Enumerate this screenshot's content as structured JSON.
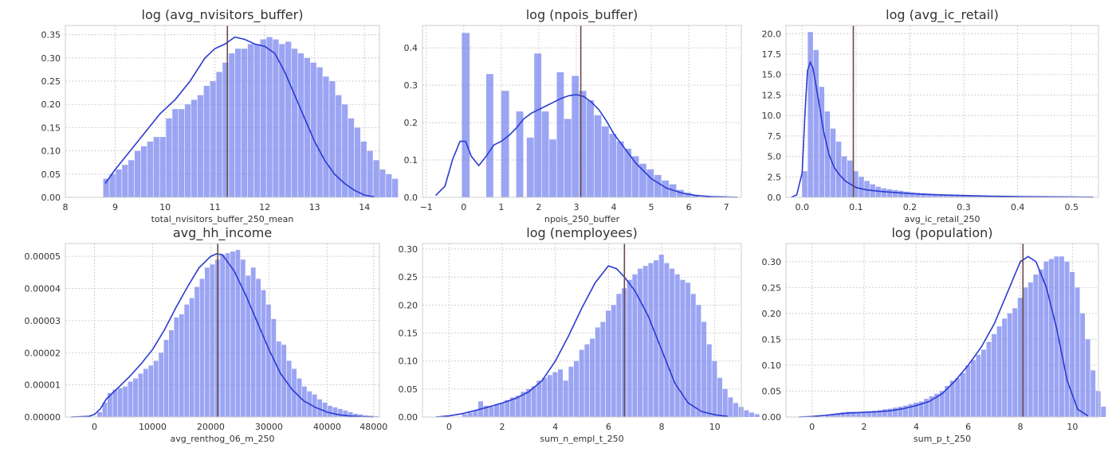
{
  "chart_data": [
    {
      "type": "histogram",
      "title": "log (avg_nvisitors_buffer)",
      "xlabel": "total_nvisitors_buffer_250_mean",
      "xlim": [
        8.0,
        14.3
      ],
      "ylim": [
        0,
        0.37
      ],
      "xticks": [
        8,
        9,
        10,
        11,
        12,
        13,
        14
      ],
      "xtick_labels": [
        "8",
        "9",
        "10",
        "11",
        "12",
        "13",
        "14"
      ],
      "yticks": [
        0,
        0.05,
        0.1,
        0.15,
        0.2,
        0.25,
        0.3,
        0.35
      ],
      "ytick_labels": [
        "0.00",
        "0.05",
        "0.10",
        "0.15",
        "0.20",
        "0.25",
        "0.30",
        "0.35"
      ],
      "mean_line": 11.25,
      "bins": {
        "start": 8.76,
        "width": 0.126,
        "heights": [
          0.04,
          0.05,
          0.06,
          0.07,
          0.08,
          0.1,
          0.11,
          0.12,
          0.13,
          0.13,
          0.17,
          0.19,
          0.19,
          0.2,
          0.21,
          0.22,
          0.24,
          0.25,
          0.27,
          0.29,
          0.31,
          0.32,
          0.32,
          0.33,
          0.33,
          0.34,
          0.345,
          0.34,
          0.33,
          0.335,
          0.32,
          0.31,
          0.3,
          0.29,
          0.28,
          0.26,
          0.25,
          0.22,
          0.2,
          0.17,
          0.15,
          0.12,
          0.1,
          0.08,
          0.06,
          0.05,
          0.04
        ]
      },
      "kde": {
        "x": [
          8.8,
          9.0,
          9.3,
          9.6,
          9.9,
          10.2,
          10.5,
          10.8,
          11.0,
          11.2,
          11.4,
          11.6,
          11.8,
          12.0,
          12.2,
          12.4,
          12.6,
          12.8,
          13.0,
          13.2,
          13.4,
          13.6,
          13.8,
          14.0,
          14.2
        ],
        "y": [
          0.03,
          0.06,
          0.1,
          0.14,
          0.18,
          0.21,
          0.25,
          0.3,
          0.32,
          0.33,
          0.345,
          0.34,
          0.33,
          0.325,
          0.31,
          0.27,
          0.22,
          0.17,
          0.12,
          0.08,
          0.05,
          0.03,
          0.015,
          0.005,
          0.001
        ]
      }
    },
    {
      "type": "histogram",
      "title": "log (npois_buffer)",
      "xlabel": "npois_250_buffer",
      "xlim": [
        -1.1,
        7.4
      ],
      "ylim": [
        0,
        0.46
      ],
      "xticks": [
        -1,
        0,
        1,
        2,
        3,
        4,
        5,
        6,
        7
      ],
      "xtick_labels": [
        "−1",
        "0",
        "1",
        "2",
        "3",
        "4",
        "5",
        "6",
        "7"
      ],
      "yticks": [
        0,
        0.1,
        0.2,
        0.3,
        0.4
      ],
      "ytick_labels": [
        "0.0",
        "0.1",
        "0.2",
        "0.3",
        "0.4"
      ],
      "mean_line": 3.12,
      "bars": [
        {
          "x0": -0.05,
          "x1": 0.17,
          "h": 0.44
        },
        {
          "x0": 0.6,
          "x1": 0.8,
          "h": 0.33
        },
        {
          "x0": 1.0,
          "x1": 1.22,
          "h": 0.285
        },
        {
          "x0": 1.4,
          "x1": 1.6,
          "h": 0.23
        },
        {
          "x0": 1.68,
          "x1": 1.88,
          "h": 0.16
        },
        {
          "x0": 1.88,
          "x1": 2.08,
          "h": 0.385
        },
        {
          "x0": 2.08,
          "x1": 2.28,
          "h": 0.23
        },
        {
          "x0": 2.28,
          "x1": 2.48,
          "h": 0.155
        },
        {
          "x0": 2.48,
          "x1": 2.68,
          "h": 0.335
        },
        {
          "x0": 2.68,
          "x1": 2.88,
          "h": 0.21
        },
        {
          "x0": 2.88,
          "x1": 3.08,
          "h": 0.325
        },
        {
          "x0": 3.08,
          "x1": 3.28,
          "h": 0.285
        },
        {
          "x0": 3.28,
          "x1": 3.48,
          "h": 0.26
        },
        {
          "x0": 3.48,
          "x1": 3.68,
          "h": 0.22
        },
        {
          "x0": 3.68,
          "x1": 3.88,
          "h": 0.19
        },
        {
          "x0": 3.88,
          "x1": 4.08,
          "h": 0.17
        },
        {
          "x0": 4.08,
          "x1": 4.28,
          "h": 0.15
        },
        {
          "x0": 4.28,
          "x1": 4.48,
          "h": 0.13
        },
        {
          "x0": 4.48,
          "x1": 4.68,
          "h": 0.11
        },
        {
          "x0": 4.68,
          "x1": 4.88,
          "h": 0.09
        },
        {
          "x0": 4.88,
          "x1": 5.08,
          "h": 0.075
        },
        {
          "x0": 5.08,
          "x1": 5.28,
          "h": 0.06
        },
        {
          "x0": 5.28,
          "x1": 5.48,
          "h": 0.045
        },
        {
          "x0": 5.48,
          "x1": 5.68,
          "h": 0.035
        },
        {
          "x0": 5.68,
          "x1": 5.88,
          "h": 0.02
        },
        {
          "x0": 5.88,
          "x1": 6.08,
          "h": 0.012
        },
        {
          "x0": 6.08,
          "x1": 6.28,
          "h": 0.007
        }
      ],
      "kde": {
        "x": [
          -0.75,
          -0.5,
          -0.3,
          -0.1,
          0.05,
          0.2,
          0.4,
          0.6,
          0.8,
          1.0,
          1.2,
          1.4,
          1.6,
          1.8,
          2.0,
          2.2,
          2.4,
          2.6,
          2.8,
          3.0,
          3.2,
          3.4,
          3.6,
          3.8,
          4.0,
          4.3,
          4.6,
          5.0,
          5.4,
          5.8,
          6.2,
          6.6,
          7.0,
          7.3
        ],
        "y": [
          0.005,
          0.03,
          0.1,
          0.15,
          0.15,
          0.11,
          0.085,
          0.11,
          0.14,
          0.15,
          0.165,
          0.185,
          0.21,
          0.225,
          0.235,
          0.245,
          0.255,
          0.265,
          0.272,
          0.275,
          0.27,
          0.255,
          0.235,
          0.205,
          0.17,
          0.13,
          0.09,
          0.05,
          0.025,
          0.012,
          0.005,
          0.002,
          0.001,
          0.0
        ]
      }
    },
    {
      "type": "histogram",
      "title": "log (avg_ic_retail)",
      "xlabel": "avg_ic_retail_250",
      "xlim": [
        -0.03,
        0.55
      ],
      "ylim": [
        0,
        21
      ],
      "xticks": [
        0.0,
        0.1,
        0.2,
        0.3,
        0.4,
        0.5
      ],
      "xtick_labels": [
        "0.0",
        "0.1",
        "0.2",
        "0.3",
        "0.4",
        "0.5"
      ],
      "yticks": [
        0,
        2.5,
        5,
        7.5,
        10,
        12.5,
        15,
        17.5,
        20
      ],
      "ytick_labels": [
        "0.0",
        "2.5",
        "5.0",
        "7.5",
        "10.0",
        "12.5",
        "15.0",
        "17.5",
        "20.0"
      ],
      "mean_line": 0.095,
      "bins": {
        "start": 0.0,
        "width": 0.0105,
        "heights": [
          3.2,
          20.2,
          18.0,
          13.5,
          10.5,
          8.4,
          6.8,
          5.0,
          4.5,
          3.2,
          2.5,
          2.0,
          1.6,
          1.3,
          1.1,
          1.0,
          0.9,
          0.8,
          0.7,
          0.6,
          0.55,
          0.5,
          0.45,
          0.4,
          0.35,
          0.32,
          0.3,
          0.28,
          0.25,
          0.22,
          0.2,
          0.18,
          0.16,
          0.14,
          0.12,
          0.1,
          0.09,
          0.08,
          0.07,
          0.06,
          0.05,
          0.045,
          0.04,
          0.035,
          0.03,
          0.025,
          0.02,
          0.02
        ]
      },
      "kde": {
        "x": [
          -0.02,
          -0.01,
          0.0,
          0.005,
          0.01,
          0.015,
          0.02,
          0.03,
          0.04,
          0.05,
          0.06,
          0.07,
          0.08,
          0.1,
          0.12,
          0.15,
          0.18,
          0.22,
          0.26,
          0.3,
          0.35,
          0.4,
          0.45,
          0.5,
          0.54
        ],
        "y": [
          0.02,
          0.3,
          3.0,
          10.0,
          15.5,
          16.5,
          15.8,
          12.0,
          8.0,
          5.2,
          3.6,
          2.7,
          2.0,
          1.2,
          0.9,
          0.7,
          0.55,
          0.4,
          0.3,
          0.22,
          0.15,
          0.1,
          0.07,
          0.04,
          0.02
        ]
      }
    },
    {
      "type": "histogram",
      "title": "avg_hh_income",
      "xlabel": "avg_renthog_06_m_250",
      "xlim": [
        -5000,
        49000
      ],
      "ylim": [
        0,
        5.4e-05
      ],
      "xticks": [
        0,
        10000,
        20000,
        30000,
        40000,
        48000
      ],
      "xtick_labels": [
        "0",
        "10000",
        "20000",
        "30000",
        "40000",
        "48000"
      ],
      "yticks": [
        0,
        1e-05,
        2e-05,
        3e-05,
        4e-05,
        5e-05
      ],
      "ytick_labels": [
        "0.00000",
        "0.00001",
        "0.00002",
        "0.00003",
        "0.00004",
        "0.00005"
      ],
      "mean_line": 21200,
      "bins": {
        "start": 500,
        "width": 880,
        "heights": [
          1.5e-06,
          4.5e-06,
          7.5e-06,
          8.5e-06,
          9e-06,
          9.5e-06,
          1.1e-05,
          1.2e-05,
          1.35e-05,
          1.5e-05,
          1.6e-05,
          1.75e-05,
          2e-05,
          2.4e-05,
          2.7e-05,
          3.1e-05,
          3.2e-05,
          3.5e-05,
          3.7e-05,
          4.05e-05,
          4.3e-05,
          4.65e-05,
          4.75e-05,
          4.9e-05,
          5.05e-05,
          5.1e-05,
          5.15e-05,
          5.2e-05,
          4.9e-05,
          4.4e-05,
          4.65e-05,
          4.3e-05,
          3.95e-05,
          3.5e-05,
          3.05e-05,
          2.35e-05,
          2.25e-05,
          1.75e-05,
          1.5e-05,
          1.2e-05,
          9.5e-06,
          8e-06,
          7e-06,
          5.5e-06,
          4.5e-06,
          3.5e-06,
          3e-06,
          2.5e-06,
          2e-06,
          1.5e-06,
          1e-06,
          8e-07,
          5e-07,
          4e-07,
          3e-07
        ]
      },
      "kde": {
        "x": [
          -4000,
          -1000,
          0,
          1000,
          2000,
          4000,
          6000,
          8000,
          10000,
          12000,
          14000,
          16000,
          18000,
          20000,
          21000,
          22000,
          24000,
          26000,
          28000,
          30000,
          32000,
          34000,
          36000,
          38000,
          40000,
          42000,
          44000,
          46000,
          48000
        ],
        "y": [
          0.0,
          2e-07,
          8e-07,
          2.5e-06,
          5.5e-06,
          9e-06,
          1.25e-05,
          1.65e-05,
          2.1e-05,
          2.7e-05,
          3.4e-05,
          4.05e-05,
          4.65e-05,
          5e-05,
          5.08e-05,
          5.05e-05,
          4.55e-05,
          3.8e-05,
          2.95e-05,
          2.1e-05,
          1.35e-05,
          8.5e-06,
          5e-06,
          3e-06,
          1.5e-06,
          7e-07,
          3e-07,
          1e-07,
          0.0
        ]
      }
    },
    {
      "type": "histogram",
      "title": "log (nemployees)",
      "xlabel": "sum_n_empl_t_250",
      "xlim": [
        -1.0,
        11.0
      ],
      "ylim": [
        0,
        0.31
      ],
      "xticks": [
        0,
        2,
        4,
        6,
        8,
        10
      ],
      "xtick_labels": [
        "0",
        "2",
        "4",
        "6",
        "8",
        "10"
      ],
      "yticks": [
        0,
        0.05,
        0.1,
        0.15,
        0.2,
        0.25,
        0.3
      ],
      "ytick_labels": [
        "0.00",
        "0.05",
        "0.10",
        "0.15",
        "0.20",
        "0.25",
        "0.30"
      ],
      "mean_line": 6.6,
      "bins": {
        "start": 0.5,
        "width": 0.2,
        "heights": [
          0.005,
          0.008,
          0.012,
          0.028,
          0.02,
          0.018,
          0.022,
          0.025,
          0.03,
          0.035,
          0.038,
          0.045,
          0.05,
          0.055,
          0.065,
          0.07,
          0.075,
          0.08,
          0.085,
          0.065,
          0.09,
          0.1,
          0.12,
          0.13,
          0.14,
          0.16,
          0.17,
          0.19,
          0.2,
          0.22,
          0.23,
          0.245,
          0.255,
          0.265,
          0.27,
          0.275,
          0.28,
          0.29,
          0.275,
          0.265,
          0.255,
          0.245,
          0.24,
          0.22,
          0.2,
          0.17,
          0.13,
          0.1,
          0.07,
          0.05,
          0.035,
          0.025,
          0.018,
          0.012,
          0.008,
          0.005
        ]
      },
      "kde": {
        "x": [
          -0.5,
          0.0,
          0.5,
          1.0,
          1.5,
          2.0,
          2.5,
          3.0,
          3.5,
          4.0,
          4.5,
          5.0,
          5.5,
          6.0,
          6.3,
          6.6,
          7.0,
          7.5,
          8.0,
          8.5,
          9.0,
          9.5,
          10.0,
          10.5
        ],
        "y": [
          0.0,
          0.002,
          0.006,
          0.012,
          0.018,
          0.025,
          0.033,
          0.045,
          0.065,
          0.1,
          0.145,
          0.195,
          0.24,
          0.27,
          0.265,
          0.25,
          0.225,
          0.18,
          0.12,
          0.06,
          0.025,
          0.01,
          0.004,
          0.001
        ]
      }
    },
    {
      "type": "histogram",
      "title": "log (population)",
      "xlabel": "sum_p_t_250",
      "xlim": [
        -1.0,
        11.0
      ],
      "ylim": [
        0,
        0.335
      ],
      "xticks": [
        0,
        2,
        4,
        6,
        8,
        10
      ],
      "xtick_labels": [
        "0",
        "2",
        "4",
        "6",
        "8",
        "10"
      ],
      "yticks": [
        0,
        0.05,
        0.1,
        0.15,
        0.2,
        0.25,
        0.3
      ],
      "ytick_labels": [
        "0.00",
        "0.05",
        "0.10",
        "0.15",
        "0.20",
        "0.25",
        "0.30"
      ],
      "mean_line": 8.1,
      "bins": {
        "start": 0.5,
        "width": 0.2,
        "heights": [
          0.003,
          0.005,
          0.007,
          0.009,
          0.01,
          0.01,
          0.009,
          0.01,
          0.011,
          0.012,
          0.013,
          0.015,
          0.016,
          0.018,
          0.02,
          0.022,
          0.025,
          0.028,
          0.03,
          0.035,
          0.04,
          0.045,
          0.05,
          0.06,
          0.07,
          0.075,
          0.085,
          0.1,
          0.11,
          0.12,
          0.13,
          0.145,
          0.16,
          0.175,
          0.19,
          0.2,
          0.21,
          0.23,
          0.25,
          0.26,
          0.275,
          0.285,
          0.3,
          0.305,
          0.31,
          0.31,
          0.3,
          0.28,
          0.25,
          0.2,
          0.15,
          0.09,
          0.05,
          0.02
        ]
      },
      "kde": {
        "x": [
          -0.5,
          0.0,
          0.5,
          1.0,
          1.5,
          2.0,
          2.5,
          3.0,
          3.5,
          4.0,
          4.5,
          5.0,
          5.5,
          6.0,
          6.5,
          7.0,
          7.5,
          8.0,
          8.3,
          8.6,
          9.0,
          9.4,
          9.8,
          10.2,
          10.6
        ],
        "y": [
          0.0,
          0.001,
          0.003,
          0.006,
          0.008,
          0.009,
          0.01,
          0.012,
          0.016,
          0.022,
          0.03,
          0.045,
          0.07,
          0.1,
          0.135,
          0.18,
          0.24,
          0.3,
          0.31,
          0.3,
          0.25,
          0.17,
          0.07,
          0.015,
          0.002
        ]
      }
    }
  ]
}
